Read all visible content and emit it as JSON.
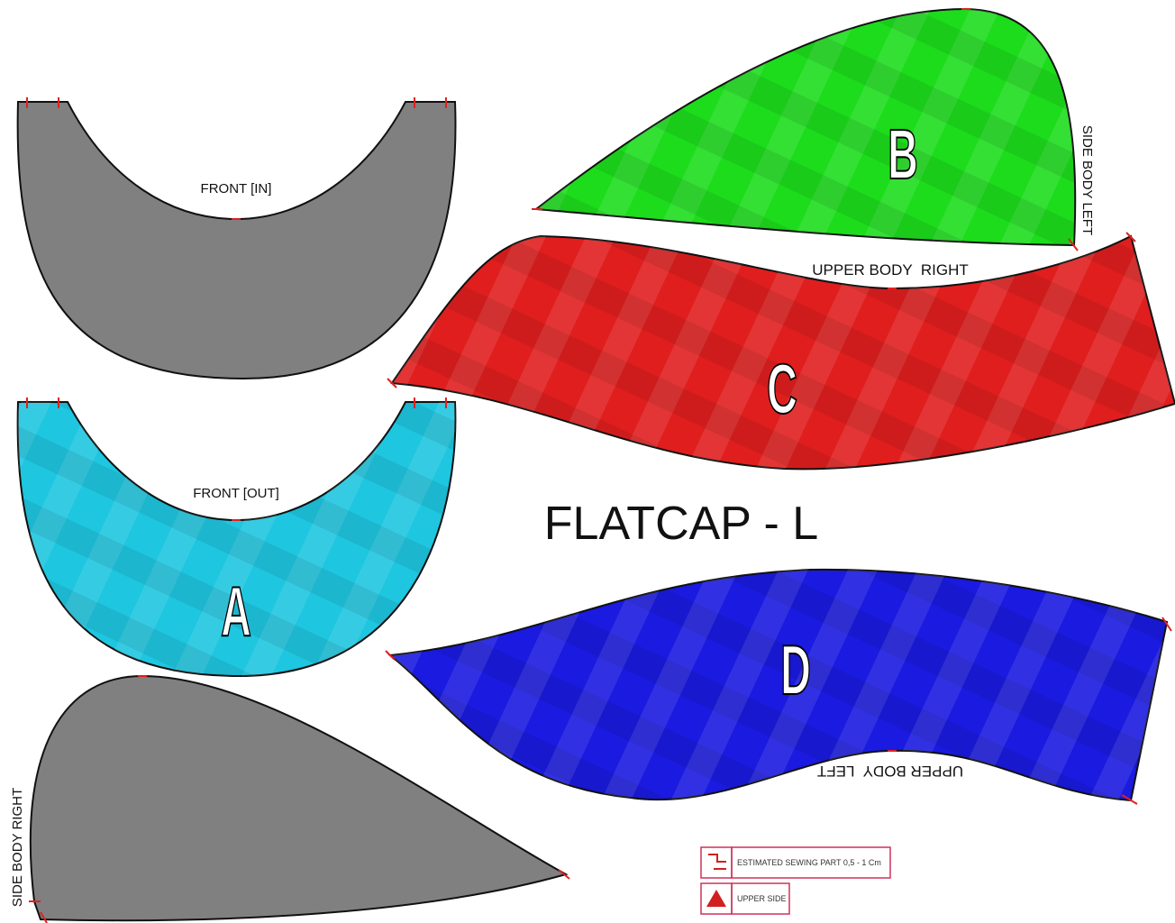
{
  "title": "FLATCAP - L",
  "pieces": [
    {
      "name": "FRONT [IN]"
    },
    {
      "name": "FRONT [OUT]",
      "letter": "A"
    },
    {
      "name": "SIDE BODY LEFT",
      "letter": "B"
    },
    {
      "name": "UPPER BODY  RIGHT",
      "letter": "C"
    },
    {
      "name": "UPPER BODY  LEFT",
      "letter": "D"
    },
    {
      "name": "SIDE BODY RIGHT"
    }
  ],
  "legend": [
    {
      "label": "ESTIMATED SEWING PART 0,5 - 1 Cm"
    },
    {
      "label": "UPPER SIDE"
    }
  ]
}
